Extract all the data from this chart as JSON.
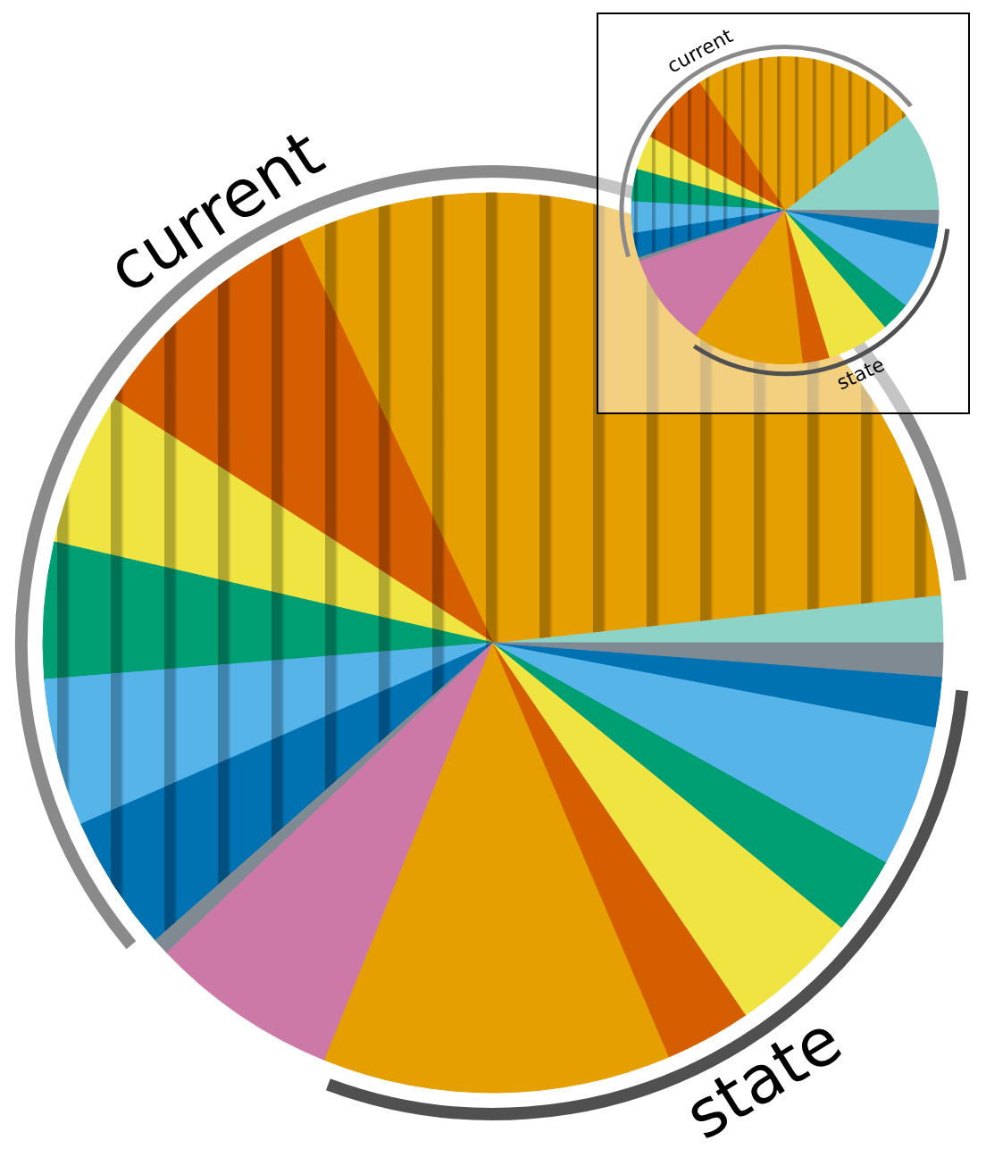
{
  "chart_data": [
    {
      "type": "pie",
      "categories": [
        null,
        null,
        null,
        null,
        null,
        null,
        null,
        null,
        null,
        null,
        null,
        null,
        null,
        null,
        null,
        null,
        null,
        null
      ],
      "values": [
        1.7,
        26.7,
        3.7,
        7.0,
        1.8,
        5.5,
        4.9,
        5.3,
        4.9,
        0.6,
        6.8,
        12.5,
        3.1,
        4.6,
        2.8,
        5.1,
        1.8,
        1.2
      ],
      "colors": [
        "#8dd3c7",
        "#e69f00",
        "#e69f00",
        "#d55e00",
        "#d55e00",
        "#f0e442",
        "#009e73",
        "#56b4e9",
        "#0072b2",
        "#7f8a93",
        "#cc79a7",
        "#e69f00",
        "#d55e00",
        "#f0e442",
        "#009e73",
        "#56b4e9",
        "#0072b2",
        "#7f8a93"
      ],
      "annotations": [
        "current",
        "state"
      ]
    },
    {
      "type": "pie",
      "categories": [
        null,
        null,
        null,
        null,
        null,
        null,
        null,
        null,
        null,
        null,
        null,
        null,
        null,
        null,
        null,
        null,
        null,
        null
      ],
      "values": [
        10.6,
        19.5,
        4.3,
        6.3,
        1.4,
        3.6,
        3.4,
        3.3,
        2.6,
        0.4,
        9.8,
        11.7,
        2.8,
        6.6,
        3.1,
        6.6,
        2.6,
        1.4
      ],
      "colors": [
        "#8dd3c7",
        "#e69f00",
        "#e69f00",
        "#d55e00",
        "#d55e00",
        "#f0e442",
        "#009e73",
        "#56b4e9",
        "#0072b2",
        "#7f8a93",
        "#cc79a7",
        "#e69f00",
        "#d55e00",
        "#f0e442",
        "#009e73",
        "#56b4e9",
        "#0072b2",
        "#7f8a93"
      ],
      "annotations": [
        "current",
        "state"
      ]
    }
  ]
}
